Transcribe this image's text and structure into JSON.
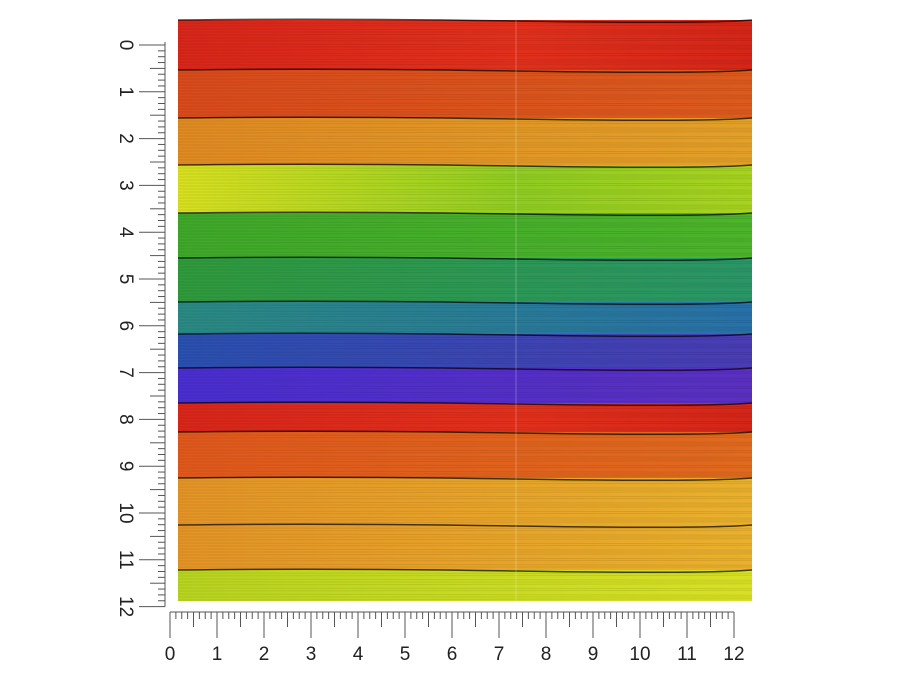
{
  "vertical_ruler": {
    "labels": [
      0,
      1,
      2,
      3,
      4,
      5,
      6,
      7,
      8,
      9,
      10,
      11,
      12
    ]
  },
  "horizontal_ruler": {
    "labels": [
      0,
      1,
      2,
      3,
      4,
      5,
      6,
      7,
      8,
      9,
      10,
      11,
      12
    ]
  }
}
